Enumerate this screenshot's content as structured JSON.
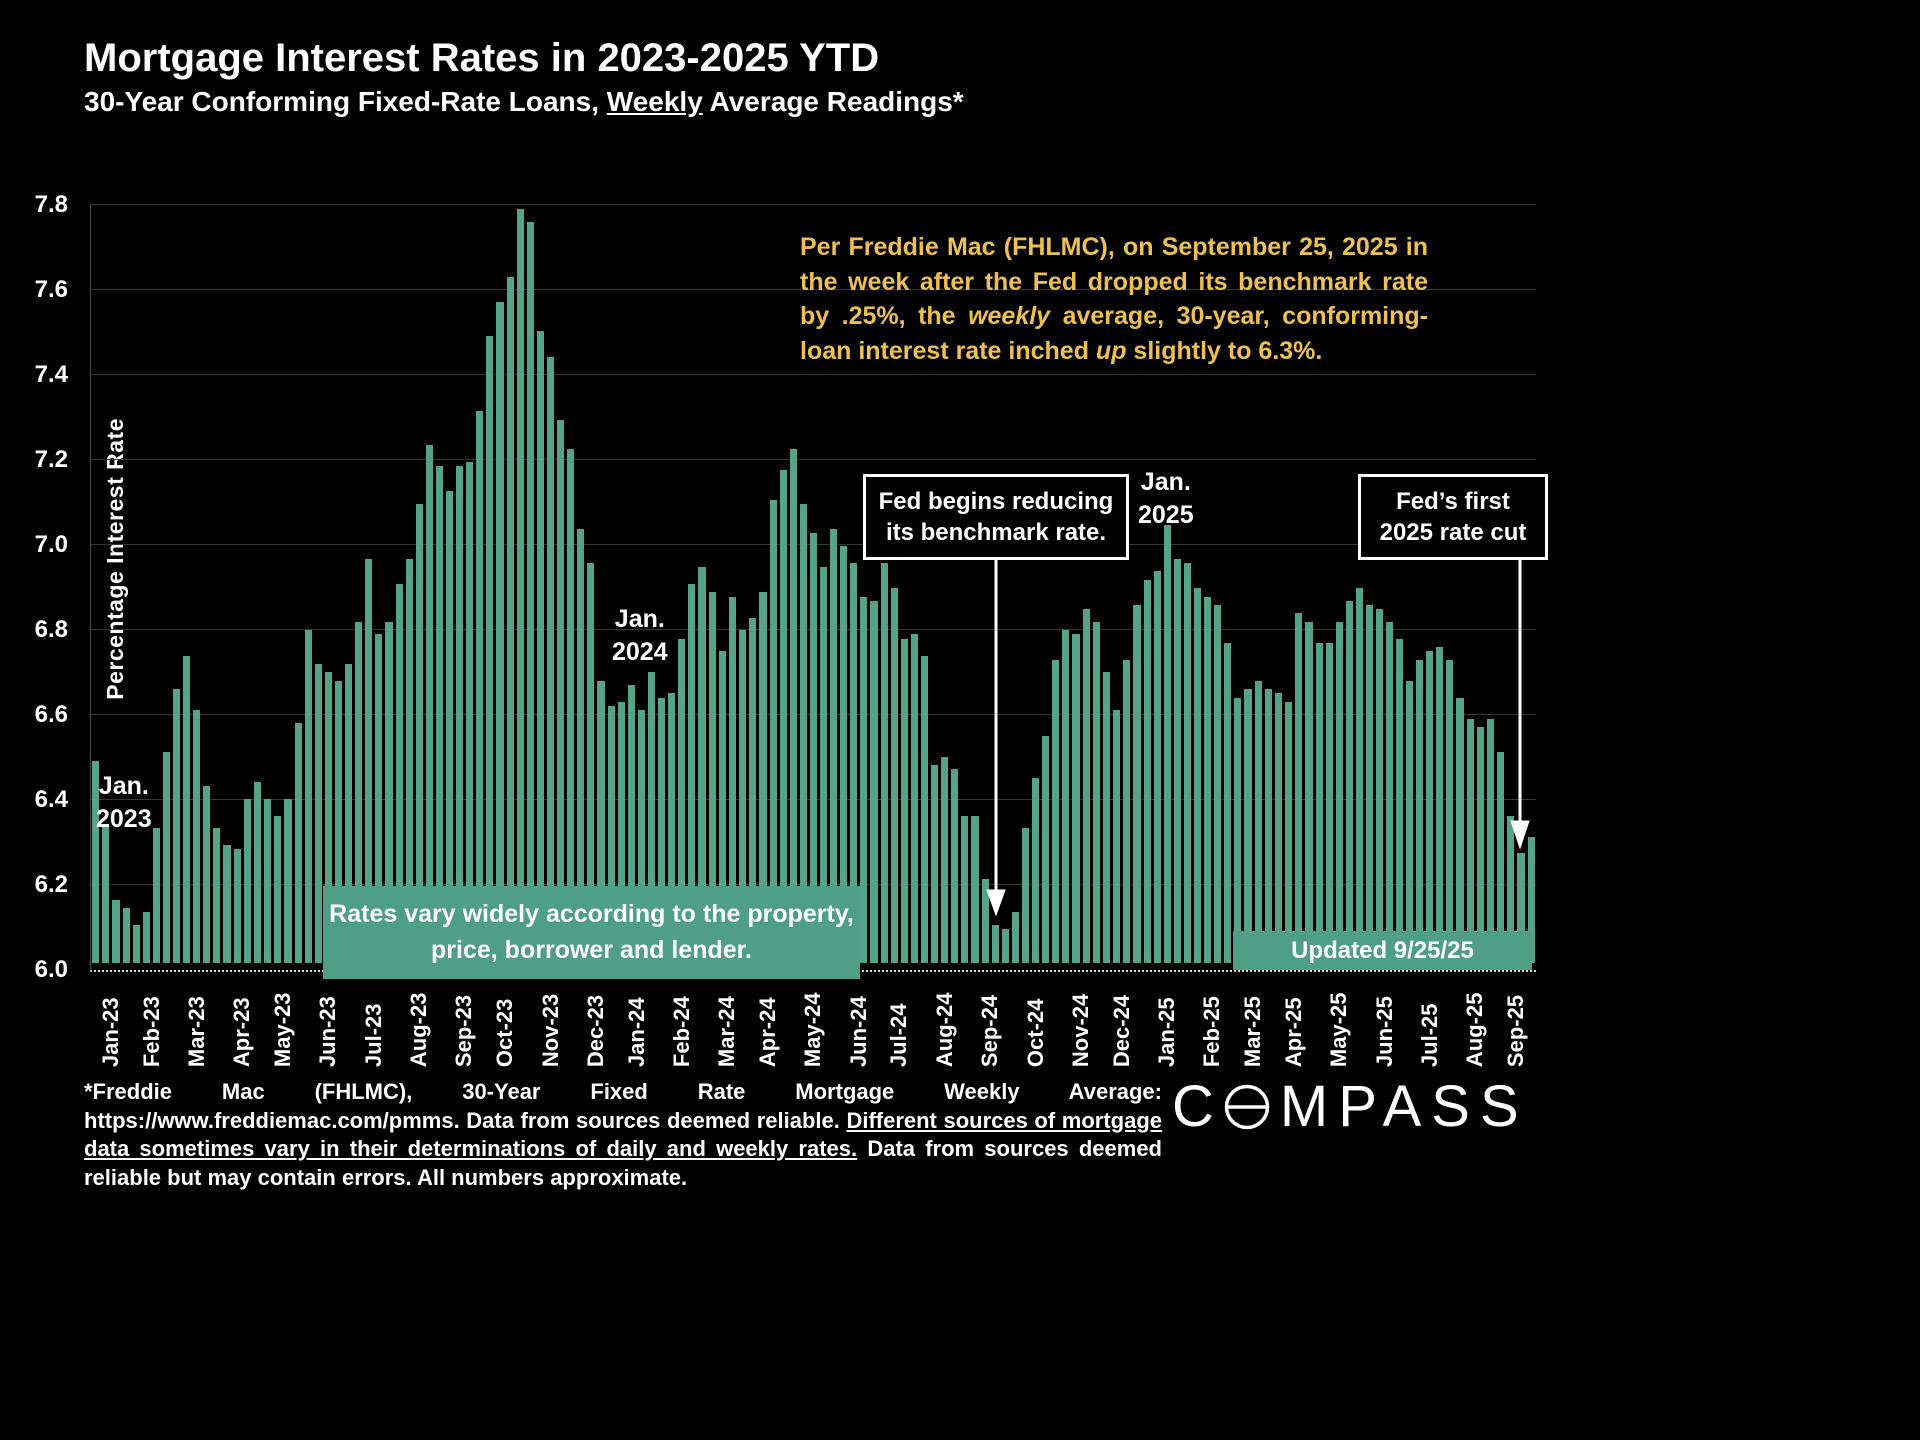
{
  "page": {
    "title": "Mortgage Interest Rates in 2023-2025 YTD",
    "subtitle_prefix": "30-Year Conforming Fixed-Rate Loans, ",
    "subtitle_underlined": "Weekly",
    "subtitle_suffix": " Average Readings*"
  },
  "colors": {
    "bar": "#55a38a",
    "banner": "#4f9e86",
    "gold": "#eec052",
    "background": "#000000"
  },
  "annotations": {
    "jan_2023": "Jan.\n2023",
    "jan_2024": "Jan.\n2024",
    "jan_2025": "Jan.\n2025",
    "fed_begins": "Fed begins reducing\nits benchmark rate.",
    "fed_first": "Fed’s first\n2025 rate cut",
    "banner_rates": "Rates vary widely according to the property,\nprice, borrower and lender.",
    "banner_updated": "Updated 9/25/25",
    "note": {
      "p1": "Per Freddie Mac (FHLMC), on September 25, 2025 in the week after the Fed dropped its benchmark rate by .25%, the ",
      "i1": "weekly",
      "p2": " average, 30-year, conforming-loan interest rate inched ",
      "i2": "up",
      "p3": " slightly to 6.3%."
    }
  },
  "footer": {
    "p1": "*Freddie Mac (FHLMC), 30-Year Fixed Rate Mortgage Weekly Average:  https://www.freddiemac.com/pmms. Data from sources deemed reliable. ",
    "underlined": "Different sources of mortgage data sometimes vary in their determinations of daily and weekly rates.",
    "p2": " Data from sources deemed reliable but may contain errors. All numbers approximate."
  },
  "logo": {
    "before_o": "C",
    "after_o": "MPASS"
  },
  "chart_data": {
    "type": "bar",
    "title": "Mortgage Interest Rates in 2023-2025 YTD",
    "subtitle": "30-Year Conforming Fixed-Rate Loans, Weekly Average Readings*",
    "xlabel": "",
    "ylabel": "Percentage  Interest  Rate",
    "ylim": [
      6.0,
      7.8
    ],
    "yticks": [
      6.0,
      6.2,
      6.4,
      6.6,
      6.8,
      7.0,
      7.2,
      7.4,
      7.6,
      7.8
    ],
    "grid": true,
    "legend": false,
    "months": [
      {
        "label": "Jan-23",
        "values": [
          6.48,
          6.33,
          6.15,
          6.13
        ]
      },
      {
        "label": "Feb-23",
        "values": [
          6.09,
          6.12,
          6.32,
          6.5
        ]
      },
      {
        "label": "Mar-23",
        "values": [
          6.65,
          6.73,
          6.6,
          6.42,
          6.32
        ]
      },
      {
        "label": "Apr-23",
        "values": [
          6.28,
          6.27,
          6.39,
          6.43
        ]
      },
      {
        "label": "May-23",
        "values": [
          6.39,
          6.35,
          6.39,
          6.57
        ]
      },
      {
        "label": "Jun-23",
        "values": [
          6.79,
          6.71,
          6.69,
          6.67,
          6.71
        ]
      },
      {
        "label": "Jul-23",
        "values": [
          6.81,
          6.96,
          6.78,
          6.81
        ]
      },
      {
        "label": "Aug-23",
        "values": [
          6.9,
          6.96,
          7.09,
          7.23,
          7.18
        ]
      },
      {
        "label": "Sep-23",
        "values": [
          7.12,
          7.18,
          7.19,
          7.31
        ]
      },
      {
        "label": "Oct-23",
        "values": [
          7.49,
          7.57,
          7.63,
          7.79
        ]
      },
      {
        "label": "Nov-23",
        "values": [
          7.76,
          7.5,
          7.44,
          7.29,
          7.22
        ]
      },
      {
        "label": "Dec-23",
        "values": [
          7.03,
          6.95,
          6.67,
          6.61
        ]
      },
      {
        "label": "Jan-24",
        "values": [
          6.62,
          6.66,
          6.6,
          6.69
        ]
      },
      {
        "label": "Feb-24",
        "values": [
          6.63,
          6.64,
          6.77,
          6.9,
          6.94
        ]
      },
      {
        "label": "Mar-24",
        "values": [
          6.88,
          6.74,
          6.87,
          6.79
        ]
      },
      {
        "label": "Apr-24",
        "values": [
          6.82,
          6.88,
          7.1,
          7.17
        ]
      },
      {
        "label": "May-24",
        "values": [
          7.22,
          7.09,
          7.02,
          6.94,
          7.03
        ]
      },
      {
        "label": "Jun-24",
        "values": [
          6.99,
          6.95,
          6.87,
          6.86
        ]
      },
      {
        "label": "Jul-24",
        "values": [
          6.95,
          6.89,
          6.77,
          6.78
        ]
      },
      {
        "label": "Aug-24",
        "values": [
          6.73,
          6.47,
          6.49,
          6.46,
          6.35
        ]
      },
      {
        "label": "Sep-24",
        "values": [
          6.35,
          6.2,
          6.09,
          6.08
        ]
      },
      {
        "label": "Oct-24",
        "values": [
          6.12,
          6.32,
          6.44,
          6.54,
          6.72
        ]
      },
      {
        "label": "Nov-24",
        "values": [
          6.79,
          6.78,
          6.84,
          6.81
        ]
      },
      {
        "label": "Dec-24",
        "values": [
          6.69,
          6.6,
          6.72,
          6.85
        ]
      },
      {
        "label": "Jan-25",
        "values": [
          6.91,
          6.93,
          7.04,
          6.96,
          6.95
        ]
      },
      {
        "label": "Feb-25",
        "values": [
          6.89,
          6.87,
          6.85,
          6.76
        ]
      },
      {
        "label": "Mar-25",
        "values": [
          6.63,
          6.65,
          6.67,
          6.65
        ]
      },
      {
        "label": "Apr-25",
        "values": [
          6.64,
          6.62,
          6.83,
          6.81
        ]
      },
      {
        "label": "May-25",
        "values": [
          6.76,
          6.76,
          6.81,
          6.86,
          6.89
        ]
      },
      {
        "label": "Jun-25",
        "values": [
          6.85,
          6.84,
          6.81,
          6.77
        ]
      },
      {
        "label": "Jul-25",
        "values": [
          6.67,
          6.72,
          6.74,
          6.75,
          6.72
        ]
      },
      {
        "label": "Aug-25",
        "values": [
          6.63,
          6.58,
          6.56,
          6.58
        ]
      },
      {
        "label": "Sep-25",
        "values": [
          6.5,
          6.35,
          6.26,
          6.3
        ]
      }
    ]
  }
}
